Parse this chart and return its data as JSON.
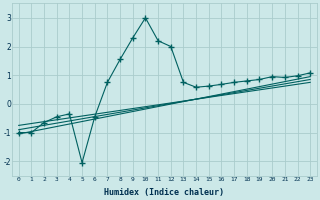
{
  "x_main": [
    0,
    1,
    2,
    3,
    4,
    5,
    6,
    7,
    8,
    9,
    10,
    11,
    12,
    13,
    14,
    15,
    16,
    17,
    18,
    19,
    20,
    21,
    22,
    23
  ],
  "y_main": [
    -1.0,
    -1.0,
    -0.65,
    -0.45,
    -0.35,
    -2.05,
    -0.45,
    0.75,
    1.55,
    2.3,
    3.0,
    2.2,
    2.0,
    0.75,
    0.58,
    0.62,
    0.68,
    0.75,
    0.8,
    0.85,
    0.95,
    0.92,
    0.98,
    1.08
  ],
  "line_color": "#006060",
  "marker": "+",
  "marker_size": 4,
  "marker_lw": 1.0,
  "background_color": "#cce8e8",
  "grid_color": "#aacccc",
  "xlabel": "Humidex (Indice chaleur)",
  "xlim": [
    -0.5,
    23.5
  ],
  "ylim": [
    -2.5,
    3.5
  ],
  "yticks": [
    -2,
    -1,
    0,
    1,
    2,
    3
  ],
  "xticks": [
    0,
    1,
    2,
    3,
    4,
    5,
    6,
    7,
    8,
    9,
    10,
    11,
    12,
    13,
    14,
    15,
    16,
    17,
    18,
    19,
    20,
    21,
    22,
    23
  ],
  "trend_lines": [
    {
      "x": [
        0,
        23
      ],
      "y": [
        -0.9,
        0.85
      ]
    },
    {
      "x": [
        0,
        23
      ],
      "y": [
        -0.75,
        0.75
      ]
    },
    {
      "x": [
        0,
        23
      ],
      "y": [
        -1.05,
        0.95
      ]
    }
  ]
}
